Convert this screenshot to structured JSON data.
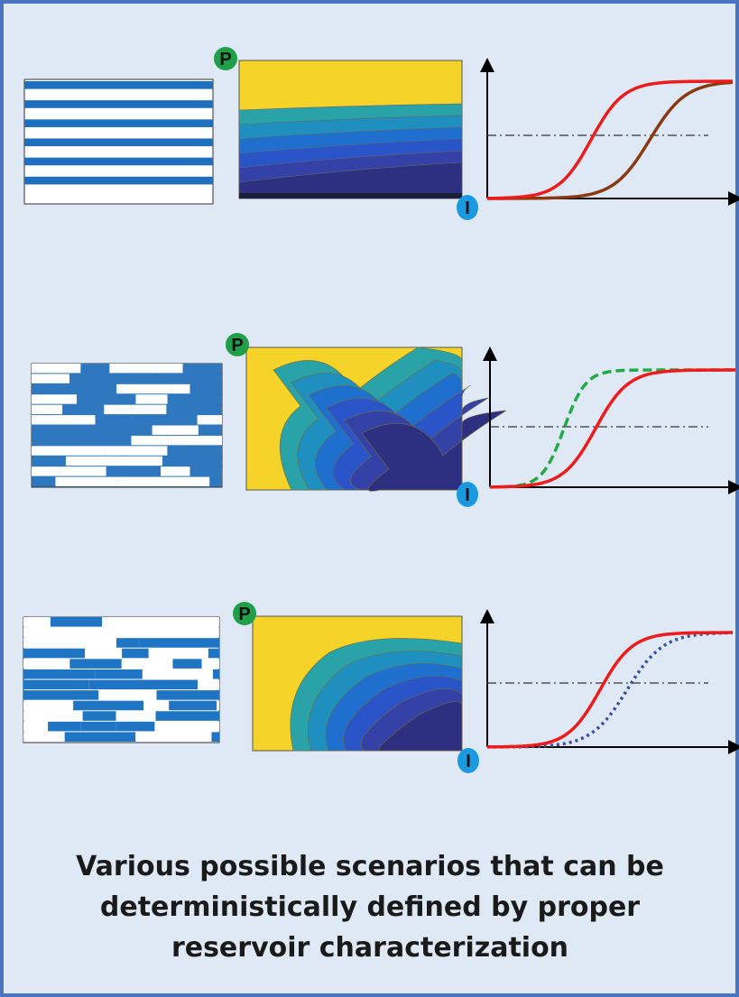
{
  "rows": [
    {
      "producer": "P",
      "injector": "I"
    },
    {
      "producer": "P",
      "injector": "I"
    },
    {
      "producer": "P",
      "injector": "I"
    }
  ],
  "caption": {
    "lines": [
      "Various possible scenarios that can be",
      "deterministically defined by proper",
      "reservoir characterization"
    ]
  }
}
